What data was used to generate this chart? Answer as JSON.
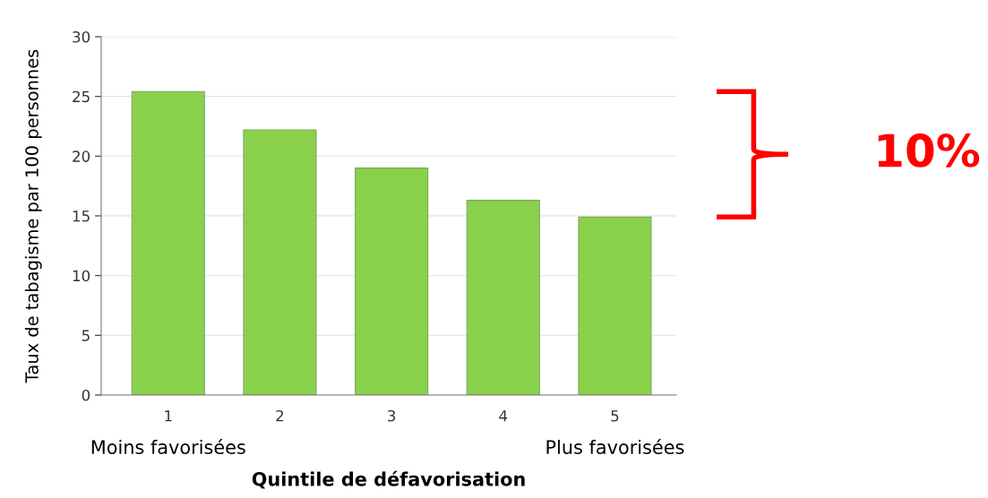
{
  "chart_data": {
    "type": "bar",
    "xlabel": "Quintile de défavorisation",
    "ylabel": "Taux de tabagisme par 100 personnes",
    "categories": [
      "1",
      "2",
      "3",
      "4",
      "5"
    ],
    "values": [
      25.4,
      22.2,
      19.0,
      16.3,
      14.9
    ],
    "color": "#8ad14b",
    "ylim": [
      0,
      30
    ],
    "yticks": [
      0,
      5,
      10,
      15,
      20,
      25,
      30
    ],
    "grid": "y",
    "annotations": [
      "Moins favorisées",
      "Plus favorisées",
      "10%"
    ]
  }
}
